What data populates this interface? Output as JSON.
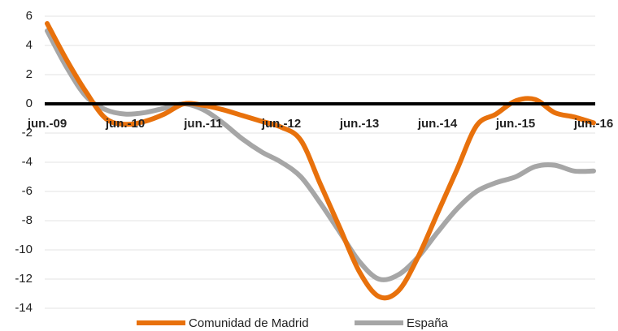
{
  "chart_data": {
    "type": "line",
    "categories": [
      "jun.-09",
      null,
      null,
      null,
      "jun.-10",
      null,
      null,
      null,
      "jun.-11",
      null,
      null,
      null,
      "jun.-12",
      null,
      null,
      null,
      "jun.-13",
      null,
      null,
      null,
      "jun.-14",
      null,
      null,
      null,
      "jun.-15",
      null,
      null,
      null,
      "jun.-16"
    ],
    "series": [
      {
        "name": "Comunidad de Madrid",
        "color": "#e8710c",
        "values": [
          5.5,
          3.0,
          0.8,
          -1.0,
          -1.4,
          -1.2,
          -0.7,
          0.0,
          -0.1,
          -0.4,
          -0.8,
          -1.2,
          -1.6,
          -2.5,
          -5.5,
          -8.5,
          -11.5,
          -13.2,
          -12.8,
          -10.5,
          -7.5,
          -4.5,
          -1.5,
          -0.7,
          0.2,
          0.3,
          -0.6,
          -0.9,
          -1.3
        ]
      },
      {
        "name": "España",
        "color": "#a6a6a6",
        "values": [
          5.0,
          2.5,
          0.5,
          -0.4,
          -0.7,
          -0.6,
          -0.3,
          0.0,
          -0.4,
          -1.3,
          -2.4,
          -3.3,
          -4.0,
          -5.0,
          -6.8,
          -8.8,
          -10.8,
          -12.0,
          -11.7,
          -10.5,
          -8.8,
          -7.2,
          -6.0,
          -5.4,
          -5.0,
          -4.3,
          -4.2,
          -4.6,
          -4.6
        ]
      }
    ],
    "ylim": [
      -14,
      6
    ],
    "yticks": [
      -14,
      -12,
      -10,
      -8,
      -6,
      -4,
      -2,
      0,
      2,
      4,
      6
    ],
    "grid": true
  }
}
